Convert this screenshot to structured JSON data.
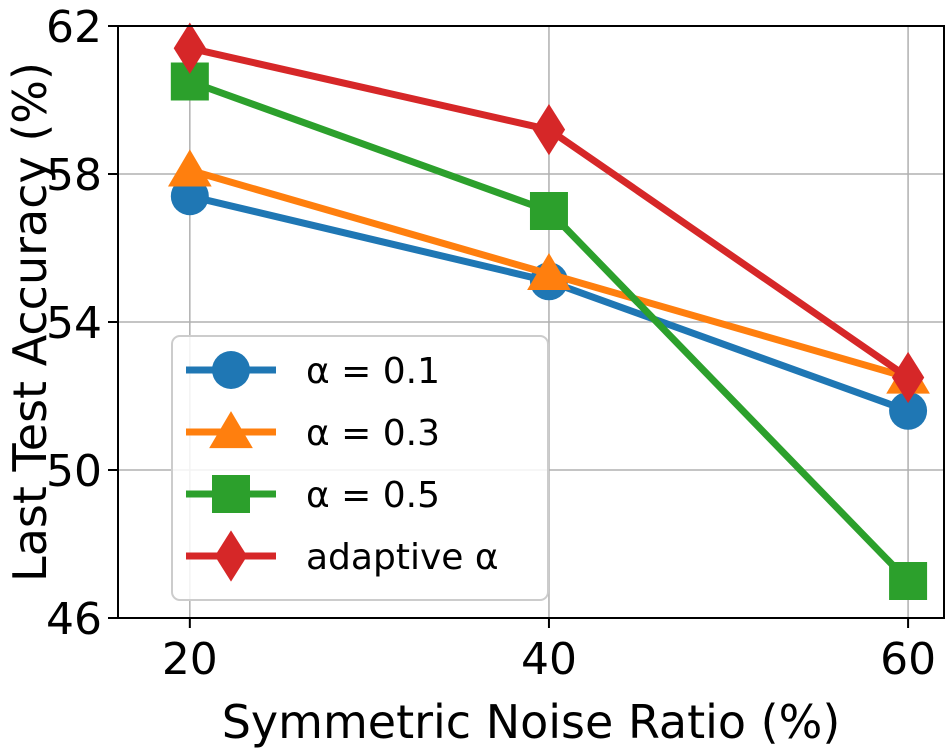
{
  "chart_data": {
    "type": "line",
    "title": "",
    "xlabel": "Symmetric Noise Ratio (%)",
    "ylabel": "Last Test Accuracy (%)",
    "x": [
      20,
      40,
      60
    ],
    "x_ticks": [
      "20",
      "40",
      "60"
    ],
    "y_ticks": [
      "46",
      "50",
      "54",
      "58",
      "62"
    ],
    "xlim": [
      16,
      62
    ],
    "ylim": [
      46,
      62
    ],
    "grid": true,
    "legend_position": "lower-left",
    "series": [
      {
        "name": "α = 0.1",
        "values": [
          57.4,
          55.1,
          51.6
        ],
        "color": "#1f77b4",
        "marker": "circle"
      },
      {
        "name": "α = 0.3",
        "values": [
          58.1,
          55.3,
          52.5
        ],
        "color": "#ff7f0e",
        "marker": "triangle"
      },
      {
        "name": "α = 0.5",
        "values": [
          60.5,
          57.0,
          47.0
        ],
        "color": "#2ca02c",
        "marker": "square"
      },
      {
        "name": "adaptive α",
        "values": [
          61.4,
          59.2,
          52.5
        ],
        "color": "#d62728",
        "marker": "diamond"
      }
    ]
  }
}
